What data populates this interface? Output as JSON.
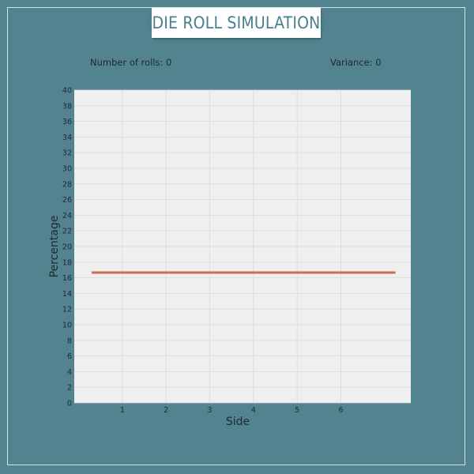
{
  "header": {
    "title": "(DIE ROLL SIMULATION)"
  },
  "stats": {
    "rolls_text": "Number of rolls: 0",
    "variance_text": "Variance: 0"
  },
  "colors": {
    "background": "#52838f",
    "plot_bg": "#efefef",
    "line": "#cf6a55",
    "title_text": "#4a7f8c"
  },
  "chart_data": {
    "type": "line",
    "xlabel": "Side",
    "ylabel": "Percentage",
    "xlim": [
      -0.1,
      7.6
    ],
    "ylim": [
      0,
      40
    ],
    "x_ticks": [
      1,
      2,
      3,
      4,
      5,
      6
    ],
    "y_ticks": [
      0,
      2,
      4,
      6,
      8,
      10,
      12,
      14,
      16,
      18,
      20,
      22,
      24,
      26,
      28,
      30,
      32,
      34,
      36,
      38,
      40
    ],
    "grid": true,
    "series": [
      {
        "x": [
          0.3,
          7.25
        ],
        "values": [
          16.67,
          16.67
        ]
      }
    ]
  }
}
